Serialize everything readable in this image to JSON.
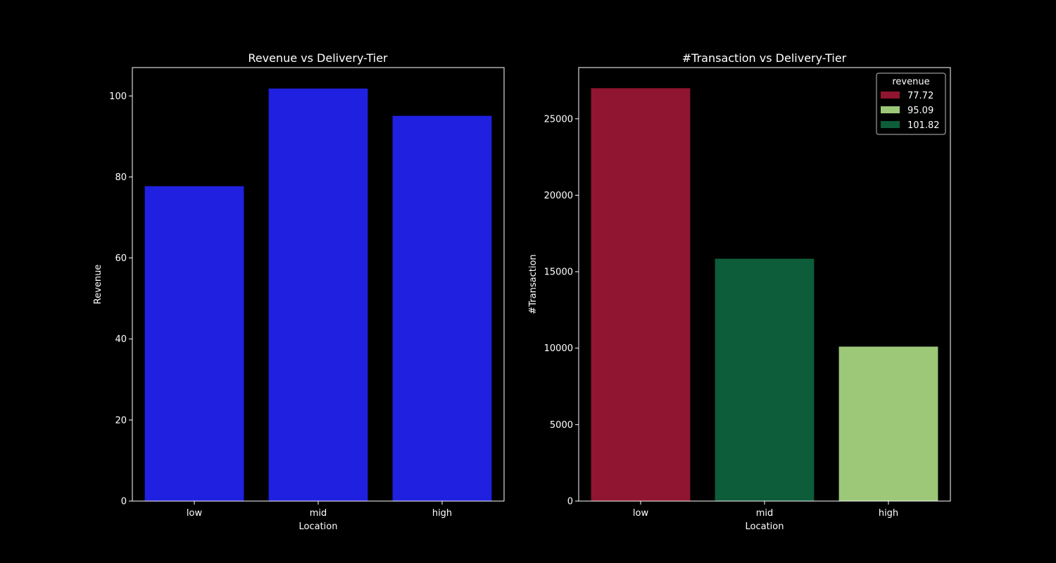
{
  "figure": {
    "background": "#000000",
    "foreground": "#ffffff"
  },
  "chart_data": [
    {
      "type": "bar",
      "title": "Revenue vs Delivery-Tier",
      "xlabel": "Location",
      "ylabel": "Revenue",
      "categories": [
        "low",
        "mid",
        "high"
      ],
      "values": [
        77.72,
        101.82,
        95.09
      ],
      "ylim": [
        0,
        107
      ],
      "yticks": [
        0,
        20,
        40,
        60,
        80,
        100
      ],
      "bar_colors": [
        "#2020e0",
        "#2020e0",
        "#2020e0"
      ],
      "grid": false,
      "legend": null
    },
    {
      "type": "bar",
      "title": "#Transaction vs Delivery-Tier",
      "xlabel": "Location",
      "ylabel": "#Transaction",
      "categories": [
        "low",
        "mid",
        "high"
      ],
      "values": [
        27000,
        15850,
        10100
      ],
      "hue": [
        77.72,
        101.82,
        95.09
      ],
      "ylim": [
        0,
        28350
      ],
      "yticks": [
        0,
        5000,
        10000,
        15000,
        20000,
        25000
      ],
      "bar_colors": [
        "#901530",
        "#0d5c3a",
        "#9cc878"
      ],
      "grid": false,
      "legend": {
        "title": "revenue",
        "placement": "upper-right",
        "entries": [
          {
            "label": "77.72",
            "color": "#901530"
          },
          {
            "label": "95.09",
            "color": "#9cc878"
          },
          {
            "label": "101.82",
            "color": "#0d5c3a"
          }
        ]
      }
    }
  ]
}
